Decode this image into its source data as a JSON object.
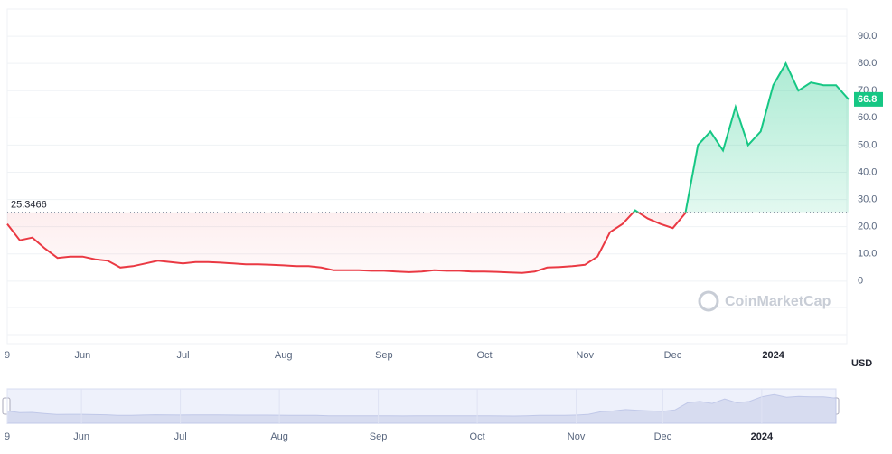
{
  "chart_data": {
    "type": "line",
    "categories": [
      "9",
      null,
      null,
      null,
      null,
      null,
      "Jun",
      null,
      null,
      null,
      null,
      null,
      null,
      null,
      "Jul",
      null,
      null,
      null,
      null,
      null,
      null,
      null,
      "Aug",
      null,
      null,
      null,
      null,
      null,
      null,
      null,
      "Sep",
      null,
      null,
      null,
      null,
      null,
      null,
      null,
      "Oct",
      null,
      null,
      null,
      null,
      null,
      null,
      null,
      "Nov",
      null,
      null,
      null,
      null,
      null,
      null,
      "Dec",
      null,
      null,
      null,
      null,
      null,
      null,
      null,
      "2024",
      null,
      null,
      null,
      null,
      null,
      null
    ],
    "values": [
      21,
      15,
      16,
      12,
      8.5,
      9,
      9,
      8,
      7.5,
      5,
      5.5,
      6.5,
      7.5,
      7,
      6.5,
      7,
      7,
      6.8,
      6.5,
      6.2,
      6.2,
      6,
      5.8,
      5.5,
      5.5,
      5,
      4,
      4,
      4,
      3.8,
      3.8,
      3.5,
      3.3,
      3.5,
      4,
      3.8,
      3.8,
      3.5,
      3.5,
      3.4,
      3.2,
      3,
      3.5,
      5,
      5.2,
      5.5,
      6,
      9,
      18,
      21,
      26,
      23,
      21,
      19.5,
      25,
      50,
      55,
      48,
      64,
      50,
      55,
      72,
      80,
      70,
      73,
      72,
      72,
      66.8
    ],
    "baseline": 25.3466,
    "up_color": "#16c784",
    "down_color": "#ea3943",
    "ylim": [
      -23,
      100
    ],
    "yticks": [
      0,
      {
        "value": 10,
        "label": "10.0"
      },
      {
        "value": 20,
        "label": "20.0"
      },
      {
        "value": 30,
        "label": "30.0"
      },
      {
        "value": 40,
        "label": "40.0"
      },
      {
        "value": 50,
        "label": "50.0"
      },
      {
        "value": 60,
        "label": "60.0"
      },
      {
        "value": 70,
        "label": "70.0"
      },
      {
        "value": 80,
        "label": "80.0"
      },
      {
        "value": 90,
        "label": "90.0"
      }
    ],
    "grid": true,
    "currency": "USD",
    "watermark": "CoinMarketCap"
  }
}
